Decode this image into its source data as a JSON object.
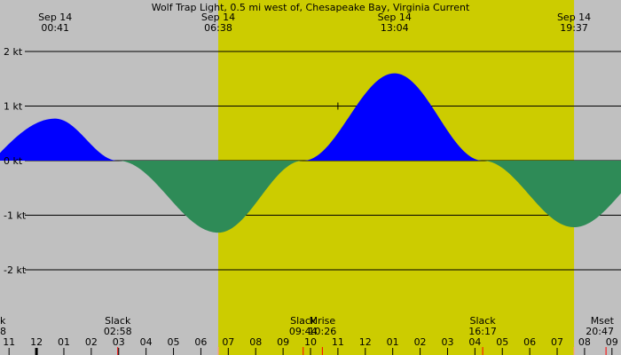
{
  "chart_data": {
    "type": "area",
    "title": "Wolf Trap Light, 0.5 mi west of, Chesapeake Bay, Virginia Current",
    "y_unit": "kt",
    "ylim": [
      -2.7,
      2.7
    ],
    "y_ticks": [
      {
        "value": 2,
        "label": "2 kt"
      },
      {
        "value": 1,
        "label": "1 kt"
      },
      {
        "value": 0,
        "label": "0 kt"
      },
      {
        "value": -1,
        "label": "-1 kt"
      },
      {
        "value": -2,
        "label": "-2 kt"
      }
    ],
    "x_range_hours": [
      -1.33,
      21.33
    ],
    "daylight": {
      "start_hour": 6.633,
      "end_hour": 19.617
    },
    "colors": {
      "night": "#c0c0c0",
      "day": "#cccc00",
      "flood": "#0000ff",
      "ebb": "#2e8b57",
      "moon_tick": "#ff0000",
      "daylight_tick": "#ff9999",
      "midnight_tick": "#000000"
    },
    "events": [
      {
        "hour": 0.683,
        "value": 0.77,
        "date": "Sep 14",
        "time": "00:41"
      },
      {
        "hour": 2.967,
        "value": 0,
        "kind": "Slack",
        "time": "02:58"
      },
      {
        "hour": 6.633,
        "value": -1.32,
        "date": "Sep 14",
        "time": "06:38"
      },
      {
        "hour": 9.733,
        "value": 0,
        "kind": "Slack",
        "time": "09:44"
      },
      {
        "hour": 13.067,
        "value": 1.6,
        "date": "Sep 14",
        "time": "13:04"
      },
      {
        "hour": 16.283,
        "value": 0,
        "kind": "Slack",
        "time": "16:17"
      },
      {
        "hour": 19.617,
        "value": -1.22,
        "date": "Sep 14",
        "time": "19:37"
      },
      {
        "hour": 23.0,
        "value": 0
      }
    ],
    "start_value": 0.08,
    "moon_events": [
      {
        "kind": "Mrise",
        "time": "10:26",
        "hour": 10.433
      },
      {
        "kind": "Mset",
        "time": "20:47",
        "hour": 20.783
      }
    ],
    "edge_labels": {
      "kind": "k",
      "time": "8"
    },
    "hour_labels": [
      {
        "hour": -1,
        "label": "11"
      },
      {
        "hour": 0,
        "label": "12"
      },
      {
        "hour": 1,
        "label": "01"
      },
      {
        "hour": 2,
        "label": "02"
      },
      {
        "hour": 3,
        "label": "03"
      },
      {
        "hour": 4,
        "label": "04"
      },
      {
        "hour": 5,
        "label": "05"
      },
      {
        "hour": 6,
        "label": "06"
      },
      {
        "hour": 7,
        "label": "07"
      },
      {
        "hour": 8,
        "label": "08"
      },
      {
        "hour": 9,
        "label": "09"
      },
      {
        "hour": 10,
        "label": "10"
      },
      {
        "hour": 11,
        "label": "11"
      },
      {
        "hour": 12,
        "label": "12"
      },
      {
        "hour": 13,
        "label": "01"
      },
      {
        "hour": 14,
        "label": "02"
      },
      {
        "hour": 15,
        "label": "03"
      },
      {
        "hour": 16,
        "label": "04"
      },
      {
        "hour": 17,
        "label": "05"
      },
      {
        "hour": 18,
        "label": "06"
      },
      {
        "hour": 19,
        "label": "07"
      },
      {
        "hour": 20,
        "label": "08"
      },
      {
        "hour": 21,
        "label": "09"
      }
    ],
    "marker": {
      "hour": 11.0,
      "value": 1.0
    }
  }
}
